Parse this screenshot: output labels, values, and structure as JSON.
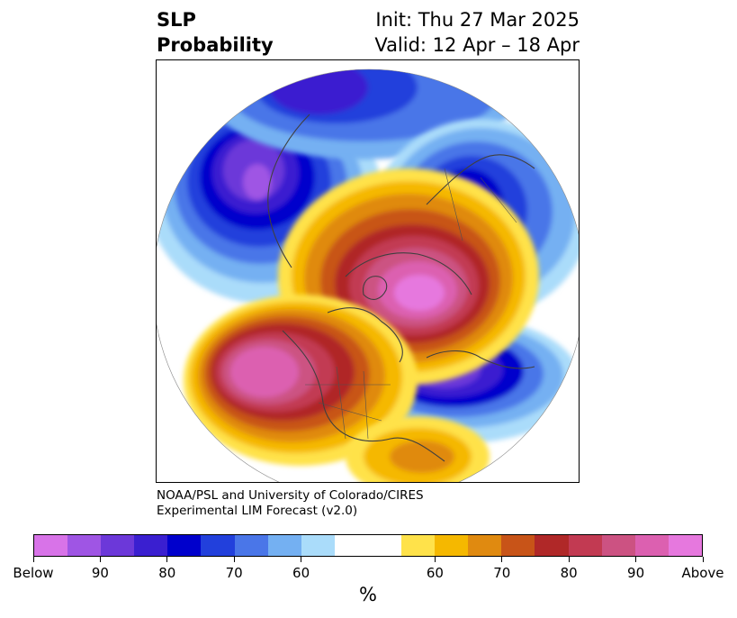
{
  "title": {
    "left_line1": "SLP",
    "left_line2": "Probability",
    "right_line1": "Init: Thu 27 Mar 2025",
    "right_line2": "Valid: 12 Apr – 18 Apr"
  },
  "credit": {
    "line1": "NOAA/PSL and University of Colorado/CIRES",
    "line2": "Experimental LIM Forecast (v2.0)"
  },
  "colorbar": {
    "colors": [
      "#d873e8",
      "#9f55e4",
      "#6c38d9",
      "#3a1fd0",
      "#0000cc",
      "#2240dc",
      "#4a76e8",
      "#74b0f2",
      "#aadcfa",
      "#ffffff",
      "#ffffff",
      "#ffe24a",
      "#f5b800",
      "#e08a10",
      "#c85418",
      "#b02828",
      "#c23a52",
      "#cc5282",
      "#dc60b0",
      "#e678de"
    ],
    "tick_labels": [
      "Below",
      "90",
      "80",
      "70",
      "60",
      "60",
      "70",
      "80",
      "90",
      "Above"
    ],
    "unit": "%"
  },
  "map": {
    "legend_categories": [
      "Below",
      "Above"
    ]
  }
}
